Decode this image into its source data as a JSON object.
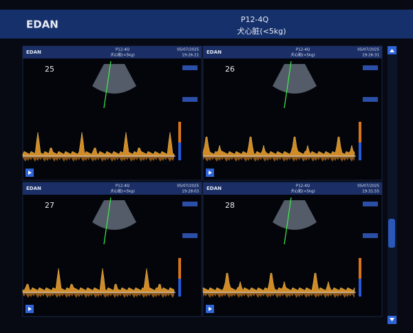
{
  "header": {
    "logo": "EDAN",
    "probe": "P12-4Q",
    "preset": "犬心脏(<5kg)"
  },
  "panels": [
    {
      "logo": "EDAN",
      "probe": "P12-4Q",
      "preset": "犬心脏(<5kg)",
      "date": "05/07/2025",
      "time": "19:26:21",
      "frame": "25"
    },
    {
      "logo": "EDAN",
      "probe": "P12-4Q",
      "preset": "犬心脏(<5kg)",
      "date": "05/07/2025",
      "time": "19:26:31",
      "frame": "26"
    },
    {
      "logo": "EDAN",
      "probe": "P12-4Q",
      "preset": "犬心脏(<5kg)",
      "date": "05/07/2025",
      "time": "19:28:03",
      "frame": "27"
    },
    {
      "logo": "EDAN",
      "probe": "P12-4Q",
      "preset": "犬心脏(<5kg)",
      "date": "05/07/2025",
      "time": "19:31:55",
      "frame": "28"
    }
  ]
}
